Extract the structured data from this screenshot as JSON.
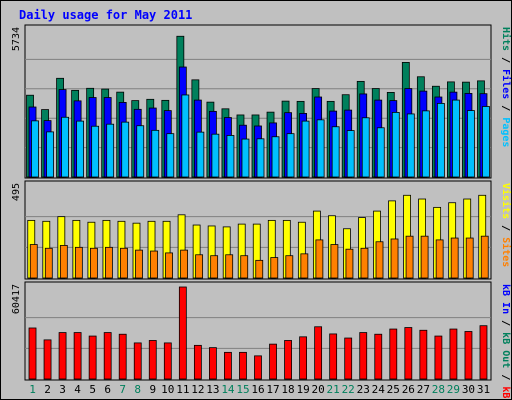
{
  "chart_data": {
    "type": "bar",
    "title": "Daily usage for May 2011",
    "categories": [
      "1",
      "2",
      "3",
      "4",
      "5",
      "6",
      "7",
      "8",
      "9",
      "10",
      "11",
      "12",
      "13",
      "14",
      "15",
      "16",
      "17",
      "18",
      "19",
      "20",
      "21",
      "22",
      "23",
      "24",
      "25",
      "26",
      "27",
      "28",
      "29",
      "30",
      "31"
    ],
    "weekend_days": [
      "1",
      "7",
      "8",
      "14",
      "15",
      "21",
      "22",
      "28",
      "29"
    ],
    "colors": {
      "background": "#C0C0C0",
      "frame": "#000000",
      "title": "#0000FF",
      "hits": "#00805C",
      "files": "#0000FF",
      "pages": "#00C0FF",
      "visits": "#FFFF00",
      "sites": "#FF8000",
      "kbin": "#FF0000",
      "kbout": "#FF8000",
      "day_weekday": "#000000",
      "day_weekend": "#00805C"
    },
    "panels": [
      {
        "id": "top",
        "max_label": "5734",
        "ymax": 5734,
        "legend": [
          {
            "text": "Hits",
            "color": "#00805C"
          },
          {
            "text": "Files",
            "color": "#0000FF"
          },
          {
            "text": "Pages",
            "color": "#00C0FF"
          }
        ],
        "legend_sep": "/",
        "series": [
          {
            "name": "Hits",
            "color": "#00805C",
            "values": [
              3190,
              2630,
              3850,
              3380,
              3460,
              3430,
              3310,
              2980,
              3030,
              2990,
              5490,
              3790,
              2920,
              2660,
              2420,
              2420,
              2530,
              2960,
              2950,
              3450,
              2950,
              3210,
              3730,
              3450,
              3300,
              4470,
              3910,
              3540,
              3710,
              3700,
              3750
            ]
          },
          {
            "name": "Files",
            "color": "#0000FF",
            "values": [
              2730,
              2200,
              3410,
              2970,
              3100,
              3100,
              2910,
              2640,
              2690,
              2590,
              4290,
              3000,
              2560,
              2320,
              2020,
              1990,
              2110,
              2510,
              2480,
              3120,
              2570,
              2610,
              3240,
              3000,
              2980,
              3450,
              3350,
              3120,
              3310,
              3260,
              3250
            ]
          },
          {
            "name": "Pages",
            "color": "#00C0FF",
            "values": [
              2190,
              1760,
              2330,
              2180,
              1980,
              2060,
              2140,
              2000,
              1820,
              1690,
              3200,
              1750,
              1670,
              1620,
              1480,
              1490,
              1570,
              1690,
              2180,
              2230,
              1960,
              1810,
              2310,
              1920,
              2520,
              2460,
              2580,
              2870,
              3000,
              2590,
              2750
            ]
          }
        ]
      },
      {
        "id": "mid",
        "max_label": "495",
        "ymax": 495,
        "legend": [
          {
            "text": "Visits",
            "color": "#FFFF00"
          },
          {
            "text": "Sites",
            "color": "#FF8000"
          }
        ],
        "legend_sep": "/",
        "series": [
          {
            "name": "Visits",
            "color": "#FFFF00",
            "values": [
              310,
              305,
              330,
              310,
              300,
              310,
              305,
              295,
              305,
              305,
              340,
              285,
              280,
              275,
              290,
              290,
              310,
              310,
              300,
              360,
              335,
              265,
              325,
              360,
              415,
              445,
              425,
              380,
              405,
              425,
              445
            ]
          },
          {
            "name": "Sites",
            "color": "#FF8000",
            "values": [
              180,
              160,
              175,
              165,
              160,
              165,
              160,
              150,
              145,
              135,
              150,
              125,
              120,
              125,
              120,
              95,
              110,
              120,
              130,
              205,
              180,
              155,
              160,
              195,
              210,
              225,
              225,
              205,
              215,
              215,
              225
            ]
          }
        ]
      },
      {
        "id": "bottom",
        "max_label": "60417",
        "ymax": 60417,
        "legend": [
          {
            "text": "kB In",
            "color": "#0000FF"
          },
          {
            "text": "kB Out",
            "color": "#00805C"
          },
          {
            "text": "kB F",
            "color": "#FF0000"
          }
        ],
        "legend_sep": "/",
        "series": [
          {
            "name": "kB F",
            "color": "#FF0000",
            "values": [
              33500,
              25700,
              30500,
              30500,
              28200,
              30500,
              29400,
              23700,
              25300,
              23700,
              60417,
              22100,
              20600,
              17500,
              17500,
              15200,
              22900,
              25300,
              27700,
              34300,
              29600,
              26900,
              30500,
              29400,
              32800,
              33800,
              32000,
              28200,
              32800,
              31200,
              35000
            ]
          }
        ]
      }
    ]
  }
}
